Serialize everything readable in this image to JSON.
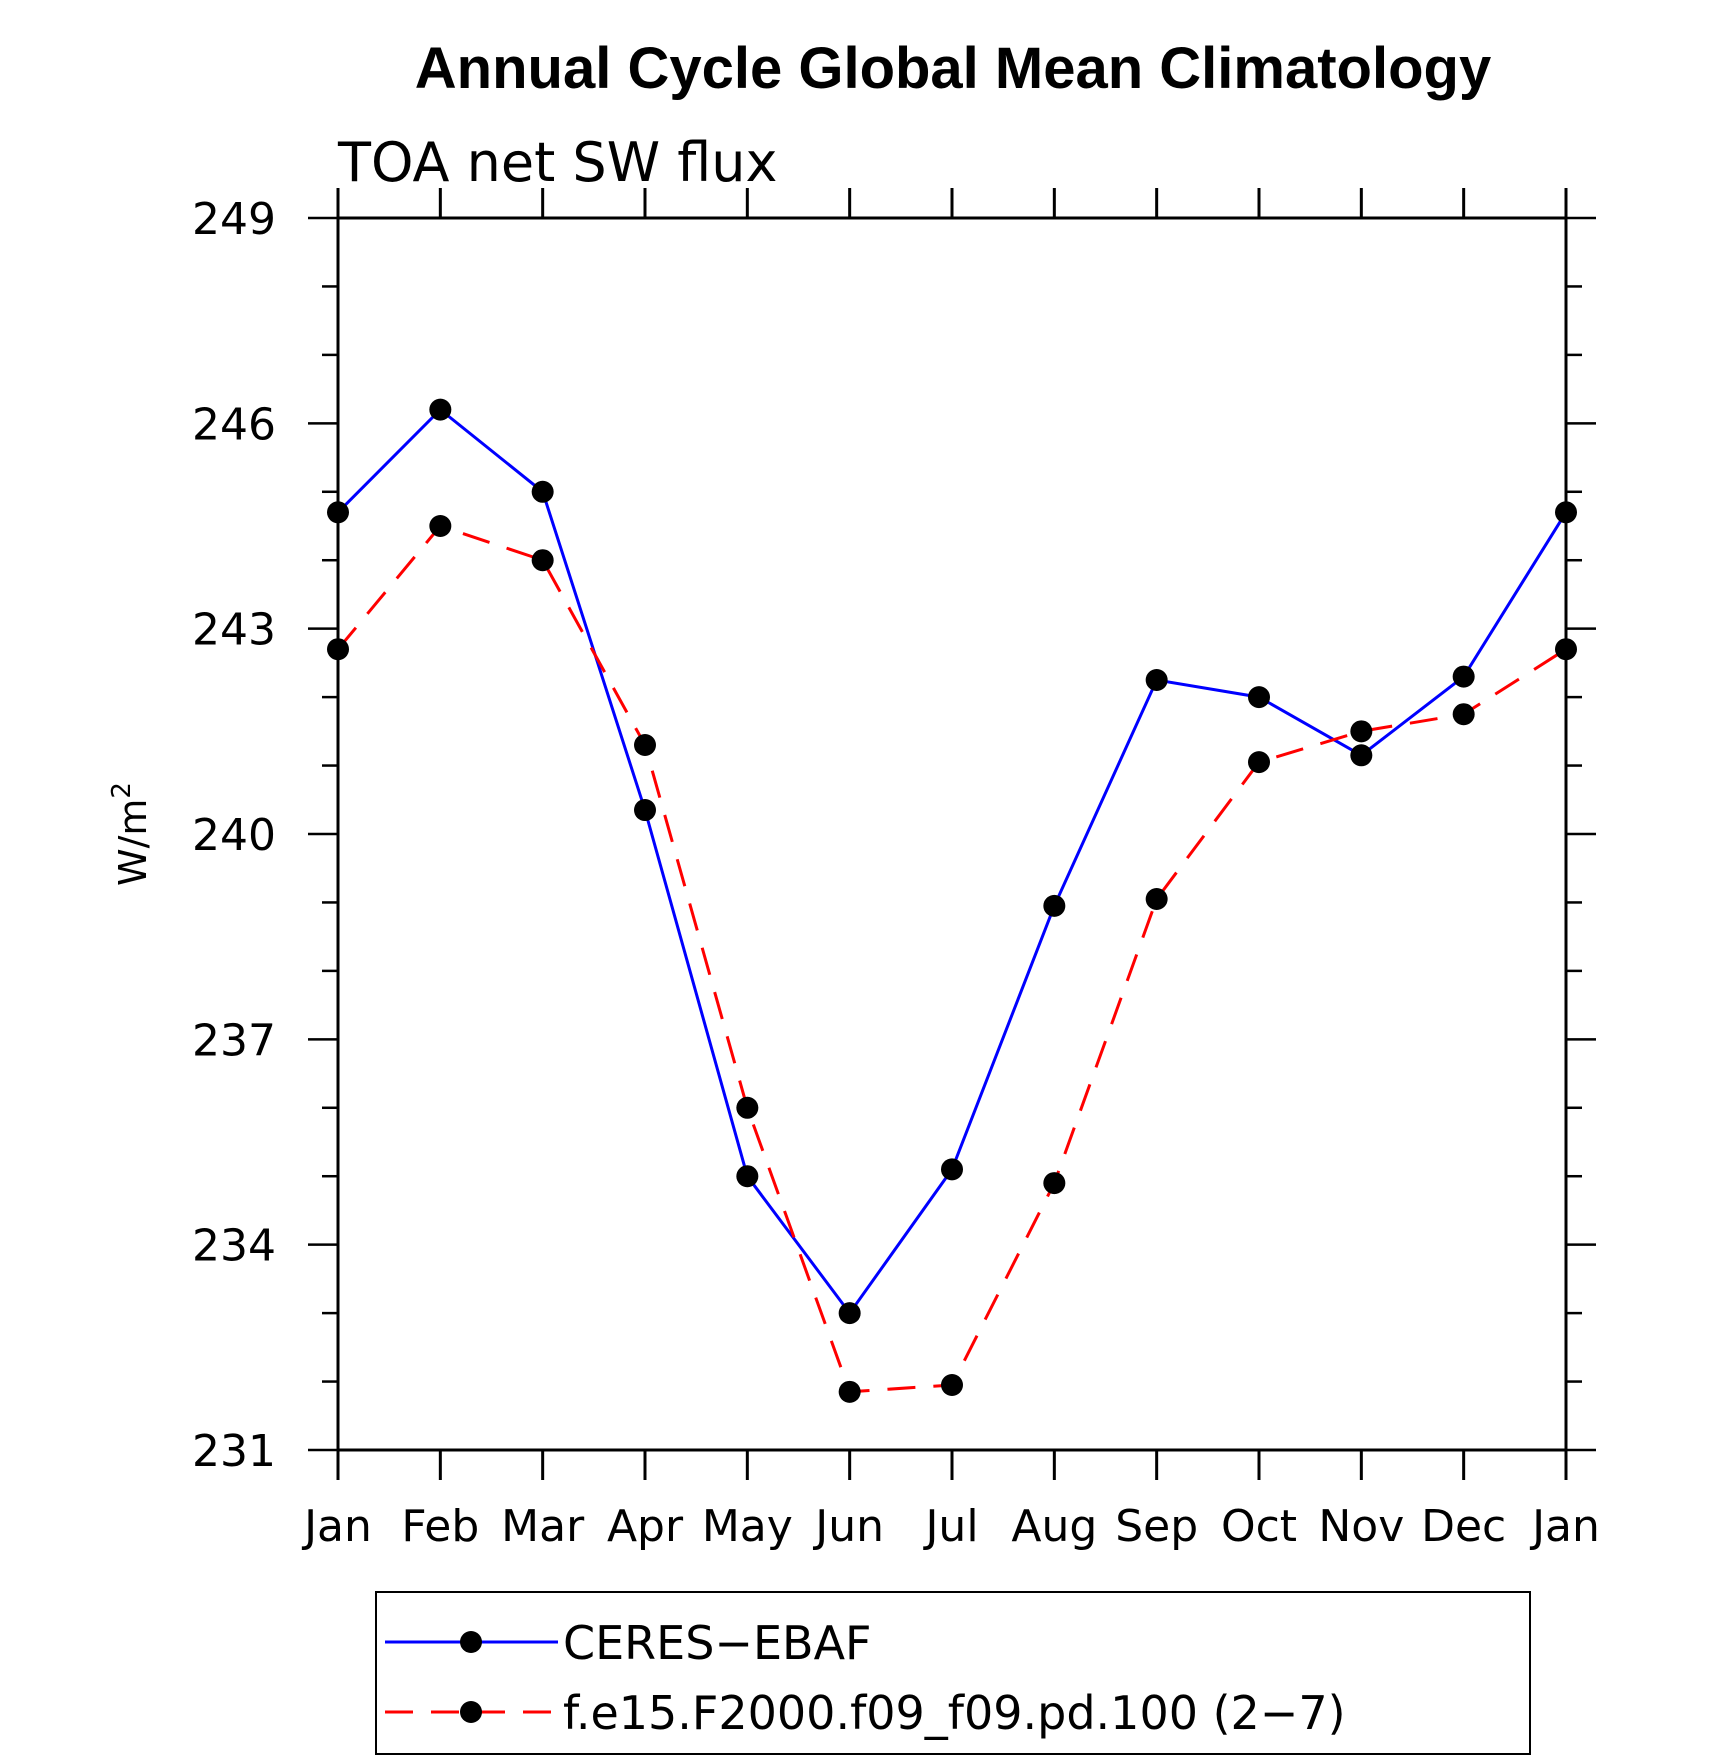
{
  "chart_data": {
    "type": "line",
    "title": "Annual Cycle Global Mean Climatology",
    "subtitle": "TOA net SW flux",
    "ylabel": "W/m",
    "ylabel_sup": "2",
    "xlabel": "",
    "categories": [
      "Jan",
      "Feb",
      "Mar",
      "Apr",
      "May",
      "Jun",
      "Jul",
      "Aug",
      "Sep",
      "Oct",
      "Nov",
      "Dec",
      "Jan"
    ],
    "ylim": [
      231,
      249
    ],
    "yticks": [
      231,
      234,
      237,
      240,
      243,
      246,
      249
    ],
    "grid": false,
    "legend_position": "bottom",
    "series": [
      {
        "name": "CERES−EBAF",
        "color": "#0000ff",
        "style": "solid",
        "marker": "circle",
        "values": [
          244.7,
          246.2,
          245.0,
          240.35,
          235.0,
          233.0,
          235.1,
          238.95,
          242.25,
          242.0,
          241.15,
          242.3,
          244.7
        ]
      },
      {
        "name": "f.e15.F2000.f09_f09.pd.100 (2−7)",
        "color": "#ff0000",
        "style": "dashed",
        "marker": "circle",
        "values": [
          242.7,
          244.5,
          244.0,
          241.3,
          236.0,
          231.85,
          231.95,
          234.9,
          239.05,
          241.05,
          241.5,
          241.75,
          242.7
        ]
      }
    ]
  }
}
